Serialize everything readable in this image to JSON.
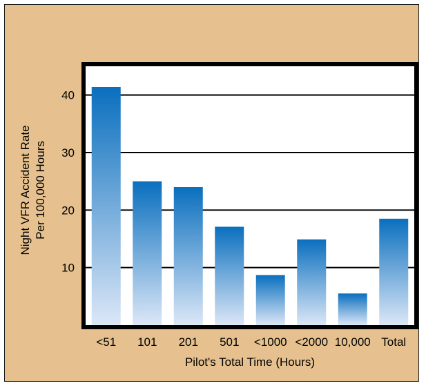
{
  "chart_data": {
    "type": "bar",
    "title": "",
    "xlabel": "Pilot's Total Time (Hours)",
    "ylabel_lines": [
      "Night VFR Accident Rate",
      "Per 100,000 Hours"
    ],
    "categories": [
      "<51",
      "101",
      "201",
      "501",
      "<1000",
      "<2000",
      "10,000",
      "Total"
    ],
    "values": [
      41.4,
      25.0,
      24.0,
      17.1,
      8.7,
      14.9,
      5.5,
      18.5
    ],
    "ylim": [
      0,
      45
    ],
    "yticks": [
      10,
      20,
      30,
      40
    ],
    "grid": true,
    "colors": {
      "bar_top": "#0a6fbe",
      "bar_bottom": "#dce7f7",
      "plot_bg": "#ffffff",
      "border": "#000000",
      "frame_bg": "#e6c18f"
    }
  }
}
